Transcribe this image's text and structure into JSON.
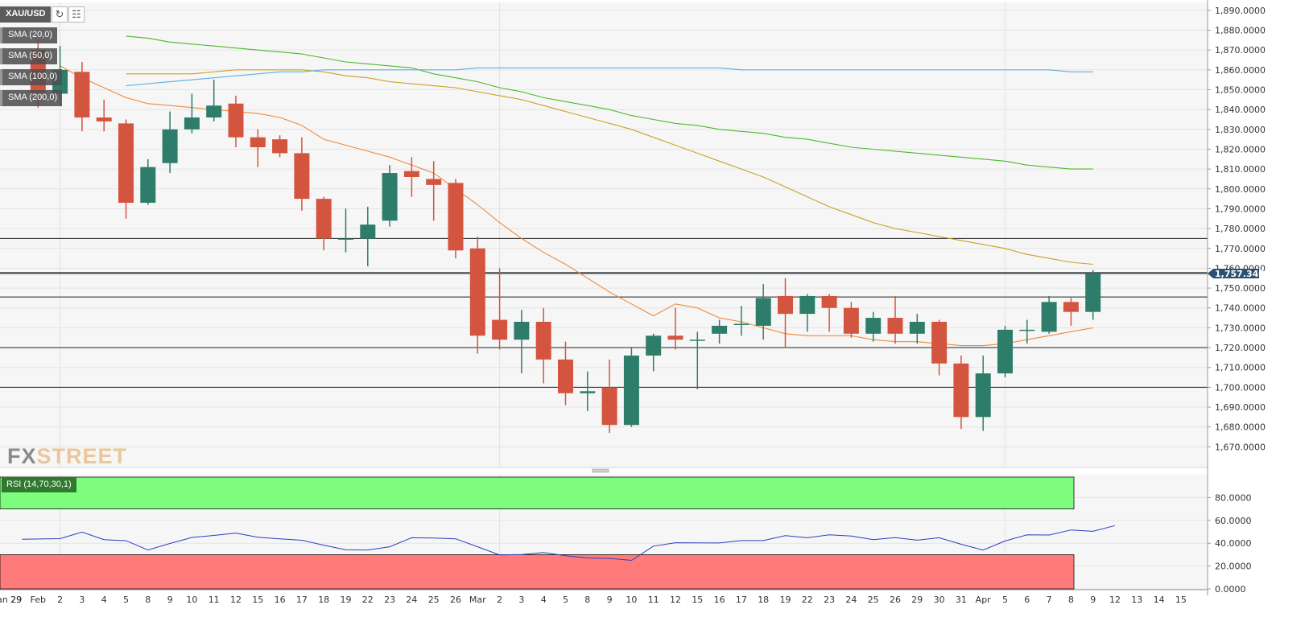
{
  "toolbar": {
    "symbol": "XAU/USD",
    "refresh_icon": "refresh-icon",
    "chart_settings_icon": "chart-settings-icon"
  },
  "indicators": [
    {
      "label": "SMA (20,0)",
      "color": "#f08a3c"
    },
    {
      "label": "SMA (50,0)",
      "color": "#c9a227"
    },
    {
      "label": "SMA (100,0)",
      "color": "#4cb82f"
    },
    {
      "label": "SMA (200,0)",
      "color": "#5ab0e0"
    }
  ],
  "rsi": {
    "label": "RSI (14,70,30,1)",
    "overbought": 70,
    "oversold": 30,
    "line_color": "#2a3fbf",
    "upper_zone_color": "#7dfc7d",
    "lower_zone_color": "#ff7a7a"
  },
  "logo": {
    "fx": "FX",
    "street": "STREET"
  },
  "colors": {
    "up": "#2e7d6a",
    "down": "#d4553f",
    "price_tag": "#2c4f72"
  },
  "chart_data": {
    "type": "candlestick",
    "title": "XAU/USD",
    "ylim": [
      1660,
      1894
    ],
    "rsi_ylim": [
      0,
      100
    ],
    "price_ticks": [
      "1,890.0000",
      "1,880.0000",
      "1,870.0000",
      "1,860.0000",
      "1,850.0000",
      "1,840.0000",
      "1,830.0000",
      "1,820.0000",
      "1,810.0000",
      "1,800.0000",
      "1,790.0000",
      "1,780.0000",
      "1,770.0000",
      "1,760.0000",
      "1,750.0000",
      "1,740.0000",
      "1,730.0000",
      "1,720.0000",
      "1,710.0000",
      "1,700.0000",
      "1,690.0000",
      "1,680.0000",
      "1,670.0000"
    ],
    "rsi_ticks": [
      "80.0000",
      "60.0000",
      "40.0000",
      "20.0000",
      "0.0000"
    ],
    "x_labels": [
      "an 29",
      "29",
      "Feb",
      "2",
      "3",
      "4",
      "5",
      "8",
      "9",
      "10",
      "11",
      "12",
      "15",
      "16",
      "17",
      "18",
      "19",
      "22",
      "23",
      "24",
      "25",
      "26",
      "Mar",
      "2",
      "3",
      "4",
      "5",
      "8",
      "9",
      "10",
      "11",
      "12",
      "15",
      "16",
      "17",
      "18",
      "19",
      "22",
      "23",
      "24",
      "25",
      "26",
      "29",
      "30",
      "31",
      "Apr",
      "5",
      "6",
      "7",
      "8",
      "9",
      "12",
      "13",
      "14",
      "15"
    ],
    "last_price": 1757.34,
    "last_price_label": "1,757.3400",
    "horizontal_levels": [
      1775,
      1757.8,
      1745.5,
      1720,
      1700
    ],
    "candles": [
      {
        "o": 1870,
        "h": 1875,
        "l": 1841,
        "c": 1848
      },
      {
        "o": 1848,
        "h": 1872,
        "l": 1842,
        "c": 1860
      },
      {
        "o": 1859,
        "h": 1864,
        "l": 1829,
        "c": 1836
      },
      {
        "o": 1836,
        "h": 1845,
        "l": 1829,
        "c": 1834
      },
      {
        "o": 1833,
        "h": 1835,
        "l": 1785,
        "c": 1793
      },
      {
        "o": 1793,
        "h": 1815,
        "l": 1792,
        "c": 1811
      },
      {
        "o": 1813,
        "h": 1839,
        "l": 1808,
        "c": 1830
      },
      {
        "o": 1830,
        "h": 1848,
        "l": 1828,
        "c": 1836
      },
      {
        "o": 1836,
        "h": 1855,
        "l": 1834,
        "c": 1842
      },
      {
        "o": 1843,
        "h": 1847,
        "l": 1821,
        "c": 1826
      },
      {
        "o": 1826,
        "h": 1830,
        "l": 1811,
        "c": 1821
      },
      {
        "o": 1825,
        "h": 1827,
        "l": 1816,
        "c": 1818
      },
      {
        "o": 1818,
        "h": 1826,
        "l": 1789,
        "c": 1795
      },
      {
        "o": 1795,
        "h": 1796,
        "l": 1769,
        "c": 1775
      },
      {
        "o": 1775,
        "h": 1790,
        "l": 1768,
        "c": 1775
      },
      {
        "o": 1775,
        "h": 1791,
        "l": 1761,
        "c": 1782
      },
      {
        "o": 1784,
        "h": 1812,
        "l": 1781,
        "c": 1808
      },
      {
        "o": 1809,
        "h": 1816,
        "l": 1796,
        "c": 1806
      },
      {
        "o": 1805,
        "h": 1814,
        "l": 1784,
        "c": 1802
      },
      {
        "o": 1803,
        "h": 1805,
        "l": 1765,
        "c": 1769
      },
      {
        "o": 1770,
        "h": 1776,
        "l": 1717,
        "c": 1726
      },
      {
        "o": 1734,
        "h": 1760,
        "l": 1719,
        "c": 1724
      },
      {
        "o": 1724,
        "h": 1739,
        "l": 1707,
        "c": 1733
      },
      {
        "o": 1733,
        "h": 1740,
        "l": 1702,
        "c": 1714
      },
      {
        "o": 1714,
        "h": 1723,
        "l": 1691,
        "c": 1697
      },
      {
        "o": 1697,
        "h": 1708,
        "l": 1688,
        "c": 1698
      },
      {
        "o": 1700,
        "h": 1714,
        "l": 1677,
        "c": 1681
      },
      {
        "o": 1681,
        "h": 1720,
        "l": 1680,
        "c": 1716
      },
      {
        "o": 1716,
        "h": 1727,
        "l": 1708,
        "c": 1726
      },
      {
        "o": 1726,
        "h": 1740,
        "l": 1719,
        "c": 1724
      },
      {
        "o": 1724,
        "h": 1728,
        "l": 1699,
        "c": 1724
      },
      {
        "o": 1727,
        "h": 1734,
        "l": 1722,
        "c": 1731
      },
      {
        "o": 1732,
        "h": 1741,
        "l": 1726,
        "c": 1732
      },
      {
        "o": 1731,
        "h": 1752,
        "l": 1724,
        "c": 1745
      },
      {
        "o": 1746,
        "h": 1755,
        "l": 1720,
        "c": 1737
      },
      {
        "o": 1737,
        "h": 1747,
        "l": 1728,
        "c": 1746
      },
      {
        "o": 1746,
        "h": 1747,
        "l": 1728,
        "c": 1740
      },
      {
        "o": 1740,
        "h": 1743,
        "l": 1725,
        "c": 1727
      },
      {
        "o": 1727,
        "h": 1738,
        "l": 1723,
        "c": 1735
      },
      {
        "o": 1735,
        "h": 1746,
        "l": 1722,
        "c": 1727
      },
      {
        "o": 1727,
        "h": 1737,
        "l": 1722,
        "c": 1733
      },
      {
        "o": 1733,
        "h": 1734,
        "l": 1706,
        "c": 1712
      },
      {
        "o": 1712,
        "h": 1716,
        "l": 1679,
        "c": 1685
      },
      {
        "o": 1685,
        "h": 1716,
        "l": 1678,
        "c": 1707
      },
      {
        "o": 1707,
        "h": 1731,
        "l": 1705,
        "c": 1729
      },
      {
        "o": 1729,
        "h": 1734,
        "l": 1722,
        "c": 1729
      },
      {
        "o": 1728,
        "h": 1746,
        "l": 1727,
        "c": 1743
      },
      {
        "o": 1743,
        "h": 1745,
        "l": 1731,
        "c": 1738
      },
      {
        "o": 1738,
        "h": 1759,
        "l": 1734,
        "c": 1757.34
      }
    ],
    "series": [
      {
        "name": "SMA (20,0)",
        "values": [
          1862,
          1856,
          1851,
          1846,
          1843,
          1842,
          1841,
          1840,
          1839,
          1838,
          1836,
          1832,
          1825,
          1822,
          1819,
          1816,
          1812,
          1808,
          1800,
          1792,
          1783,
          1775,
          1768,
          1762,
          1755,
          1748,
          1742,
          1736,
          1742,
          1740,
          1735,
          1733,
          1730,
          1727,
          1726,
          1726,
          1726,
          1724,
          1723,
          1723,
          1722,
          1721,
          1721,
          1722,
          1724,
          1726,
          1728,
          1730
        ]
      },
      {
        "name": "SMA (50,0)",
        "values": [
          1858,
          1858,
          1858,
          1858,
          1859,
          1860,
          1860,
          1860,
          1860,
          1859,
          1857,
          1856,
          1854,
          1853,
          1852,
          1851,
          1849,
          1847,
          1845,
          1842,
          1839,
          1836,
          1833,
          1830,
          1826,
          1822,
          1818,
          1814,
          1810,
          1806,
          1801,
          1796,
          1791,
          1787,
          1783,
          1780,
          1778,
          1776,
          1774,
          1772,
          1770,
          1767,
          1765,
          1763,
          1762
        ]
      },
      {
        "name": "SMA (100,0)",
        "values": [
          1877,
          1876,
          1874,
          1873,
          1872,
          1871,
          1870,
          1869,
          1868,
          1866,
          1864,
          1863,
          1862,
          1861,
          1858,
          1856,
          1854,
          1851,
          1849,
          1846,
          1844,
          1842,
          1840,
          1837,
          1835,
          1833,
          1832,
          1830,
          1829,
          1828,
          1826,
          1825,
          1823,
          1821,
          1820,
          1819,
          1818,
          1817,
          1816,
          1815,
          1814,
          1812,
          1811,
          1810,
          1810
        ]
      },
      {
        "name": "SMA (200,0)",
        "values": [
          1852,
          1853,
          1854,
          1855,
          1856,
          1857,
          1858,
          1859,
          1859,
          1860,
          1860,
          1860,
          1860,
          1860,
          1860,
          1860,
          1861,
          1861,
          1861,
          1861,
          1861,
          1861,
          1861,
          1861,
          1861,
          1861,
          1861,
          1861,
          1860,
          1860,
          1860,
          1860,
          1860,
          1860,
          1860,
          1860,
          1860,
          1860,
          1860,
          1860,
          1860,
          1860,
          1860,
          1859,
          1859
        ]
      }
    ],
    "rsi_values": [
      43.5,
      44,
      49.7,
      43.2,
      42.2,
      34.1,
      39.8,
      45.1,
      46.8,
      48.9,
      45.3,
      43.9,
      42.6,
      38.3,
      34.2,
      34.1,
      36.9,
      44.8,
      44.5,
      43.9,
      36.9,
      29.8,
      30.1,
      31.9,
      29.1,
      27.1,
      26.7,
      25,
      37.5,
      40.4,
      40.3,
      40.2,
      42.3,
      42.3,
      46.7,
      44.8,
      47.4,
      46.3,
      43.2,
      44.9,
      42.7,
      44.8,
      39.1,
      34,
      42,
      47.3,
      47.2,
      51.6,
      50.4,
      55.4
    ],
    "grid": true
  }
}
